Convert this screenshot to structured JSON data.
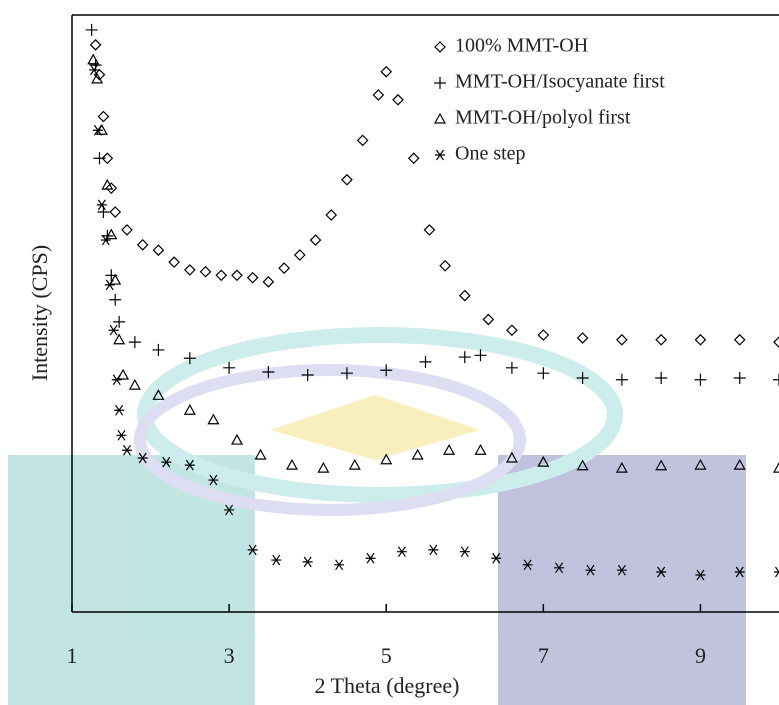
{
  "chart_data": {
    "type": "scatter",
    "x_label": "2 Theta (degree)",
    "y_label": "Intensity (CPS)",
    "xlim": [
      1,
      10
    ],
    "ylim": [
      0,
      100
    ],
    "xticks": [
      1,
      3,
      5,
      7,
      9
    ],
    "legend": "upper right",
    "series": [
      {
        "name": "100% MMT-OH",
        "color": "#000000",
        "marker": "diamond",
        "x": [
          1.3,
          1.35,
          1.4,
          1.45,
          1.5,
          1.55,
          1.7,
          1.9,
          2.1,
          2.3,
          2.5,
          2.7,
          2.9,
          3.1,
          3.3,
          3.5,
          3.7,
          3.9,
          4.1,
          4.3,
          4.5,
          4.7,
          4.9,
          5.0,
          5.15,
          5.35,
          5.55,
          5.75,
          6.0,
          6.3,
          6.6,
          7.0,
          7.5,
          8.0,
          8.5,
          9.0,
          9.5,
          10.0
        ],
        "values": [
          95,
          90,
          83,
          76,
          71,
          67,
          64,
          61.5,
          60.6,
          58.6,
          57.3,
          57,
          56.4,
          56.4,
          56,
          55.3,
          57.6,
          59.8,
          62.3,
          66.5,
          72.4,
          79,
          86.6,
          90.5,
          85.8,
          76,
          64,
          58,
          53,
          49,
          47.2,
          46.4,
          45.9,
          45.6,
          45.6,
          45.6,
          45.6,
          45.2
        ]
      },
      {
        "name": "MMT-OH/Isocyanate first",
        "color": "#000000",
        "marker": "plus",
        "x": [
          1.25,
          1.3,
          1.35,
          1.4,
          1.45,
          1.5,
          1.55,
          1.6,
          1.8,
          2.1,
          2.5,
          3.0,
          3.5,
          4.0,
          4.5,
          5.0,
          5.5,
          6.0,
          6.2,
          6.6,
          7.0,
          7.5,
          8.0,
          8.5,
          9.0,
          9.5,
          10.0
        ],
        "values": [
          97.5,
          91.6,
          76,
          67,
          63,
          56.4,
          52.3,
          48.6,
          45.2,
          43.9,
          42.5,
          40.9,
          40.2,
          39.7,
          40,
          40.5,
          41.9,
          42.7,
          43,
          40.9,
          40,
          39.2,
          38.9,
          39.2,
          38.9,
          39.2,
          38.9
        ]
      },
      {
        "name": "MMT-OH/polyol first",
        "color": "#000000",
        "marker": "triangle",
        "x": [
          1.27,
          1.32,
          1.38,
          1.45,
          1.5,
          1.55,
          1.6,
          1.65,
          1.8,
          2.1,
          2.5,
          2.8,
          3.1,
          3.4,
          3.8,
          4.2,
          4.6,
          5.0,
          5.4,
          5.8,
          6.2,
          6.6,
          7.0,
          7.5,
          8.0,
          8.5,
          9.0,
          9.5,
          10.0
        ],
        "values": [
          92.5,
          89.3,
          80.7,
          71.5,
          63.2,
          55.6,
          45.6,
          39.7,
          38,
          36.3,
          33.8,
          32.2,
          28.8,
          26.3,
          24.6,
          24.1,
          24.6,
          25.5,
          26.3,
          27.1,
          27.1,
          25.8,
          25.1,
          24.5,
          24.1,
          24.5,
          24.6,
          24.6,
          24.1
        ]
      },
      {
        "name": "One step",
        "color": "#000000",
        "marker": "asterisk",
        "x": [
          1.28,
          1.33,
          1.38,
          1.43,
          1.48,
          1.53,
          1.57,
          1.6,
          1.63,
          1.7,
          1.9,
          2.2,
          2.5,
          2.8,
          3.0,
          3.3,
          3.6,
          4.0,
          4.4,
          4.8,
          5.2,
          5.6,
          6.0,
          6.4,
          6.8,
          7.2,
          7.6,
          8.0,
          8.5,
          9.0,
          9.5,
          10.0
        ],
        "values": [
          90.8,
          80.7,
          68.2,
          62.3,
          54.8,
          47.2,
          38.9,
          33.8,
          29.6,
          27.1,
          25.8,
          25.1,
          24.6,
          22.1,
          17.1,
          10.4,
          8.7,
          8.4,
          7.9,
          9,
          10.1,
          10.4,
          10.1,
          9,
          7.9,
          7.4,
          7,
          7,
          6.7,
          6.2,
          6.7,
          6.7
        ]
      }
    ]
  }
}
